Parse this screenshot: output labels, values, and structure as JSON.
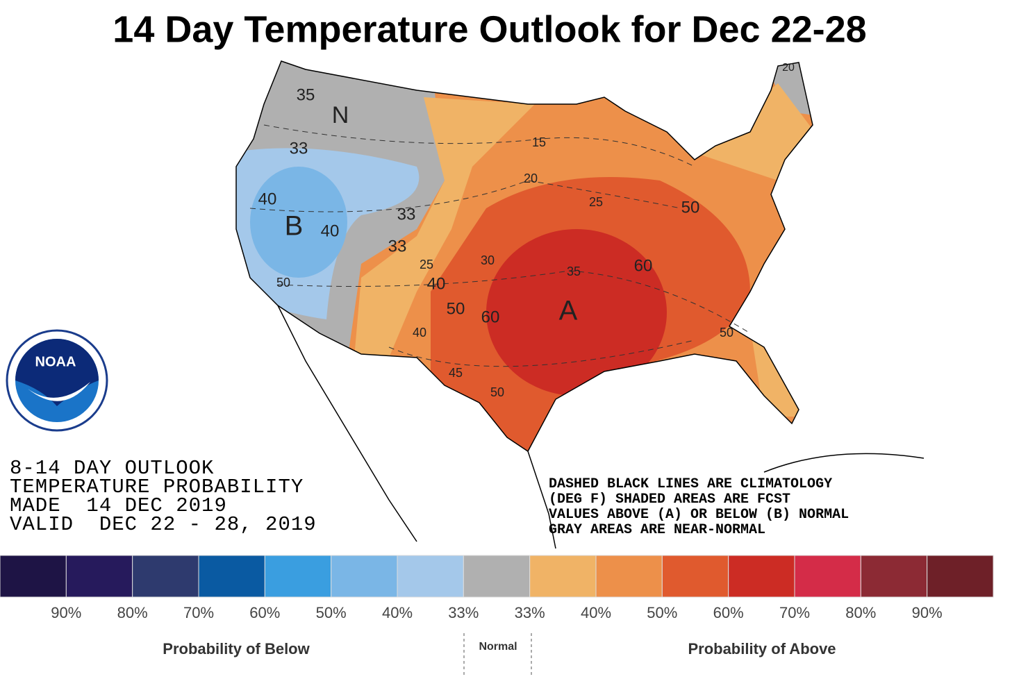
{
  "title": "14 Day Temperature Outlook for Dec 22-28",
  "outlook": {
    "lines": [
      "8-14 DAY OUTLOOK",
      "TEMPERATURE PROBABILITY",
      "MADE  14 DEC 2019",
      "VALID  DEC 22 - 28, 2019"
    ]
  },
  "notes": {
    "lines": [
      "DASHED BLACK LINES ARE CLIMATOLOGY",
      "(DEG F) SHADED AREAS ARE FCST",
      "VALUES ABOVE (A) OR BELOW (B) NORMAL",
      "GRAY AREAS ARE NEAR-NORMAL"
    ]
  },
  "logo": "NOAA",
  "map": {
    "labels": [
      "35",
      "N",
      "33",
      "40",
      "B",
      "40",
      "50",
      "33",
      "33",
      "25",
      "40",
      "50",
      "60",
      "40",
      "45",
      "50",
      "A",
      "15",
      "20",
      "25",
      "30",
      "35",
      "50",
      "60",
      "50",
      "20"
    ]
  },
  "legend": {
    "colors": [
      "#1e1445",
      "#261a5c",
      "#2e3a6e",
      "#0a5aa2",
      "#3a9ee0",
      "#7ab6e6",
      "#a4c8ea",
      "#b0b0b0",
      "#f0b366",
      "#ed904a",
      "#e05a2e",
      "#cc2c24",
      "#d42c48",
      "#8c2a34",
      "#6e2028"
    ],
    "labels": [
      "90%",
      "80%",
      "70%",
      "60%",
      "50%",
      "40%",
      "33%",
      "33%",
      "40%",
      "50%",
      "60%",
      "70%",
      "80%",
      "90%"
    ],
    "below": "Probability of Below",
    "normal": "Normal",
    "above": "Probability of Above"
  }
}
